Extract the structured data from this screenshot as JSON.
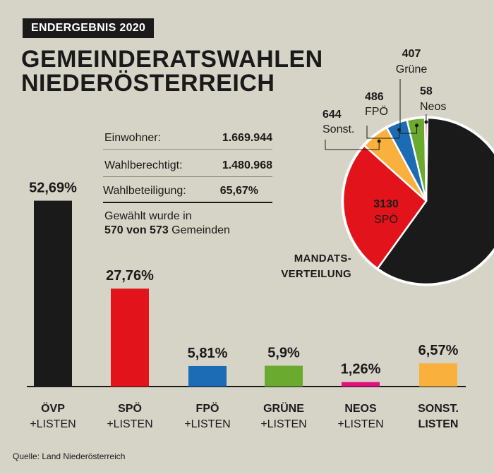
{
  "header": {
    "badge": "ENDERGEBNIS 2020",
    "title_line1": "GEMEINDERATSWAHLEN",
    "title_line2": "NIEDERÖSTERREICH"
  },
  "info": {
    "rows": [
      {
        "label": "Einwohner:",
        "value": "1.669.944"
      },
      {
        "label": "Wahlberechtigt:",
        "value": "1.480.968"
      },
      {
        "label": "Wahlbeteiligung:",
        "value": "65,67%"
      }
    ],
    "gewaehlt_line1": "Gewählt wurde in",
    "gewaehlt_bold": "570 von 573",
    "gewaehlt_rest": " Gemeinden"
  },
  "mandats_line1": "MANDATS-",
  "mandats_line2": "VERTEILUNG",
  "source": "Quelle: Land Niederösterreich",
  "chart_data": [
    {
      "type": "bar",
      "categories": [
        [
          "ÖVP",
          "+LISTEN"
        ],
        [
          "SPÖ",
          "+LISTEN"
        ],
        [
          "FPÖ",
          "+LISTEN"
        ],
        [
          "GRÜNE",
          "+LISTEN"
        ],
        [
          "NEOS",
          "+LISTEN"
        ],
        [
          "SONST.",
          "LISTEN"
        ]
      ],
      "values": [
        52.69,
        27.76,
        5.81,
        5.9,
        1.26,
        6.57
      ],
      "value_labels": [
        "52,69%",
        "27,76%",
        "5,81%",
        "5,9%",
        "1,26%",
        "6,57%"
      ],
      "colors": [
        "#1a1a1a",
        "#e3131b",
        "#1b6cb4",
        "#6aaa2e",
        "#e0117d",
        "#f9b03c"
      ]
    },
    {
      "type": "pie",
      "slices": [
        {
          "label": "ÖVP",
          "value": 7000,
          "color": "#1a1a1a"
        },
        {
          "label": "SPÖ",
          "value": 3130,
          "color": "#e3131b"
        },
        {
          "label": "Sonst.",
          "value": 644,
          "color": "#f9b03c"
        },
        {
          "label": "FPÖ",
          "value": 486,
          "color": "#1b6cb4"
        },
        {
          "label": "Grüne",
          "value": 407,
          "color": "#6aaa2e"
        },
        {
          "label": "Neos",
          "value": 58,
          "color": "#e0117d"
        }
      ]
    }
  ]
}
